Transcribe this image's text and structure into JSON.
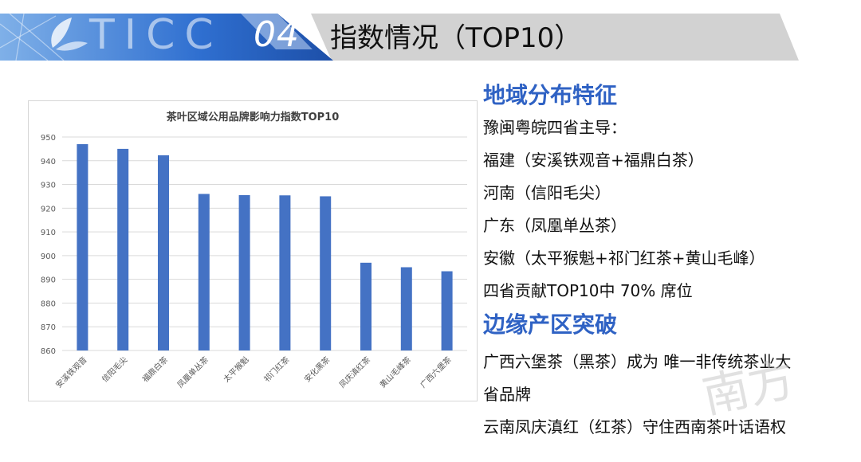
{
  "banner": {
    "logo_text": "TICC",
    "section_number": "04",
    "title": "指数情况（TOP10）"
  },
  "chart_data": {
    "type": "bar",
    "title": "茶叶区域公用品牌影响力指数TOP10",
    "categories": [
      "安溪铁观音",
      "信阳毛尖",
      "福鼎白茶",
      "凤凰单丛茶",
      "太平猴魁",
      "祁门红茶",
      "安化黑茶",
      "凤庆滇红茶",
      "黄山毛峰茶",
      "广西六堡茶"
    ],
    "values": [
      947,
      945,
      942.3,
      926,
      925.5,
      925.4,
      925,
      897,
      895.1,
      893.4
    ],
    "ylim": [
      860,
      950
    ],
    "yticks": [
      "950",
      "940",
      "930",
      "920",
      "910",
      "900",
      "890",
      "880",
      "870",
      "860"
    ],
    "xlabel": "",
    "ylabel": "",
    "grid": true,
    "colors": {
      "bar": "#4472c4"
    }
  },
  "panel": {
    "heading1": "地域分布特征",
    "lines1": [
      "豫闽粤皖四省主导：",
      "福建（安溪铁观音+福鼎白茶）",
      "河南（信阳毛尖）",
      "广东（凤凰单丛茶）",
      "安徽（太平猴魁+祁门红茶+黄山毛峰）",
      "四省贡献TOP10中 70% 席位"
    ],
    "heading2": "边缘产区突破",
    "lines2": [
      "广西六堡茶（黑茶）成为 唯一非传统茶业大",
      "省品牌",
      "云南凤庆滇红（红茶）守住西南茶叶话语权"
    ]
  },
  "watermark": "南方",
  "colors": {
    "accent": "#2f62c4",
    "banner_dark": "#1d4fa8",
    "banner_light": "#7fb0e8",
    "banner_grey": "#d2d2d2"
  }
}
